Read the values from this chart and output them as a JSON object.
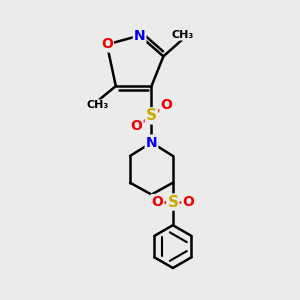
{
  "background_color": "#ebebeb",
  "bond_color": "#000000",
  "bond_width": 1.8,
  "atom_colors": {
    "N": "#0000ee",
    "O": "#ee0000",
    "S": "#ccaa00",
    "C": "#000000"
  },
  "figsize": [
    3.0,
    3.0
  ],
  "dpi": 100
}
